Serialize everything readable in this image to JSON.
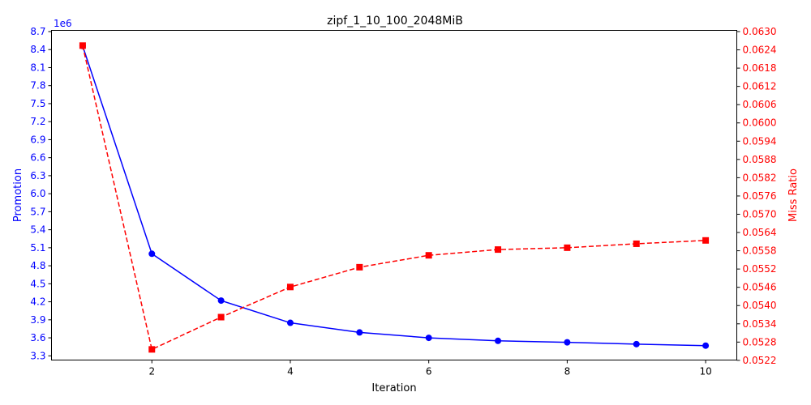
{
  "chart_data": {
    "type": "line",
    "title": "zipf_1_10_100_2048MiB",
    "xlabel": "Iteration",
    "x": [
      1,
      2,
      3,
      4,
      5,
      6,
      7,
      8,
      9,
      10
    ],
    "x_ticks": [
      "2",
      "4",
      "6",
      "8",
      "10"
    ],
    "xlim": [
      0.55,
      10.45
    ],
    "grid": false,
    "left_axis": {
      "label": "Promotion",
      "offset_text": "1e6",
      "color": "#0000ff",
      "ylim": [
        3.23,
        8.72
      ],
      "ticks": [
        "3.3",
        "3.6",
        "3.9",
        "4.2",
        "4.5",
        "4.8",
        "5.1",
        "5.4",
        "5.7",
        "6.0",
        "6.3",
        "6.6",
        "6.9",
        "7.2",
        "7.5",
        "7.8",
        "8.1",
        "8.4",
        "8.7"
      ]
    },
    "right_axis": {
      "label": "Miss Ratio",
      "color": "#ff0000",
      "ylim": [
        0.05221,
        0.06304
      ],
      "ticks": [
        "0.0522",
        "0.0528",
        "0.0534",
        "0.0540",
        "0.0546",
        "0.0552",
        "0.0558",
        "0.0564",
        "0.0570",
        "0.0576",
        "0.0582",
        "0.0588",
        "0.0594",
        "0.0600",
        "0.0606",
        "0.0612",
        "0.0618",
        "0.0624",
        "0.0630"
      ]
    },
    "series": [
      {
        "axis": "left",
        "color": "#0000ff",
        "line_style": "solid",
        "marker": "circle",
        "values": [
          8.46,
          5.0,
          4.22,
          3.85,
          3.69,
          3.6,
          3.55,
          3.525,
          3.495,
          3.47
        ]
      },
      {
        "axis": "right",
        "color": "#ff0000",
        "line_style": "dashed",
        "marker": "square",
        "values": [
          0.06254,
          0.05256,
          0.05362,
          0.05461,
          0.05526,
          0.05565,
          0.05584,
          0.0559,
          0.05603,
          0.05614
        ]
      }
    ]
  }
}
